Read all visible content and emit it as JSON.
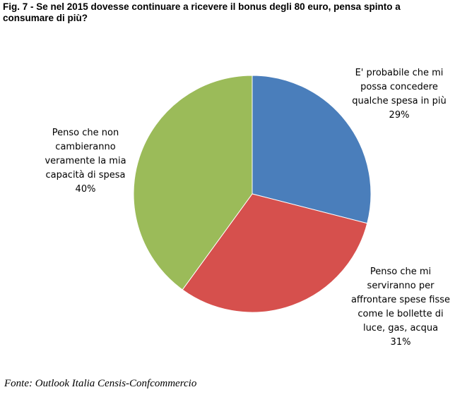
{
  "chart_data": {
    "type": "pie",
    "title": "Fig. 7 - Se nel 2015 dovesse continuare a ricevere il bonus degli 80 euro, pensa spinto a consumare di più?",
    "categories": [
      "E' probabile che mi possa concedere qualche spesa in più",
      "Penso che mi serviranno per affrontare spese fisse come le bollette di luce, gas, acqua",
      "Penso che non cambieranno veramente la mia capacità di spesa"
    ],
    "values": [
      29,
      31,
      40
    ],
    "value_labels": [
      "29%",
      "31%",
      "40%"
    ],
    "colors": [
      "#4a7ebb",
      "#d6504d",
      "#9bbb59"
    ],
    "source": "Fonte: Outlook Italia Censis-Confcommercio"
  }
}
